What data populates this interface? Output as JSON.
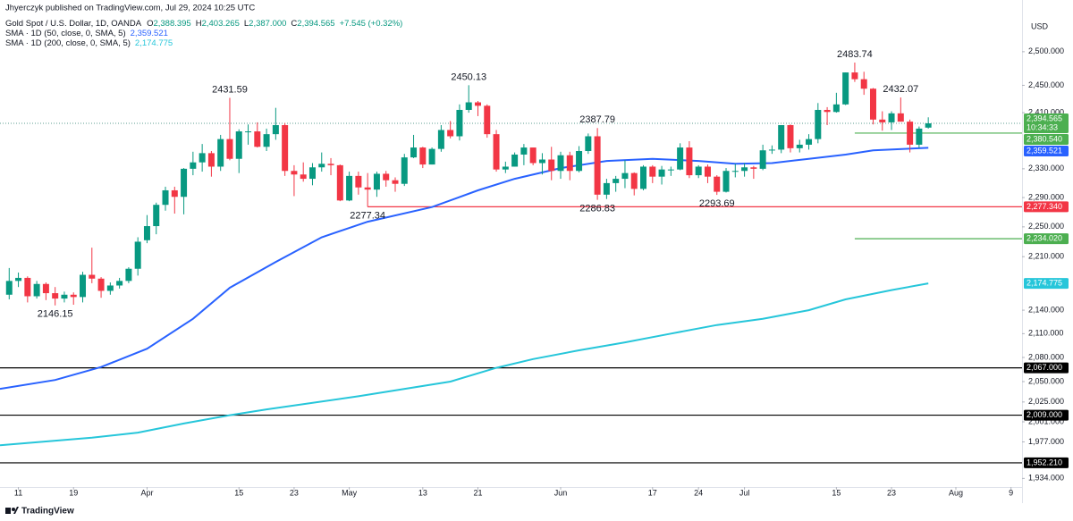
{
  "header": {
    "publisher": "Jhyerczyk published on TradingView.com, Jul 29, 2024 10:25 UTC",
    "symbol": "Gold Spot / U.S. Dollar, 1D, OANDA",
    "quote": [
      {
        "key": "O",
        "value": "2,388.395"
      },
      {
        "key": "H",
        "value": "2,403.265"
      },
      {
        "key": "L",
        "value": "2,387.000"
      },
      {
        "key": "C",
        "value": "2,394.565"
      }
    ],
    "change": "+7.545 (+0.32%)"
  },
  "footer": {
    "brand": "TradingView"
  },
  "chart_data": {
    "type": "candlestick",
    "y_label": "USD",
    "log": true,
    "up_color": "#089981",
    "down_color": "#f23645",
    "x": [
      0,
      1,
      2,
      3,
      4,
      5,
      6,
      7,
      8,
      9,
      10,
      11,
      12,
      13,
      14,
      15,
      16,
      17,
      18,
      19,
      20,
      21,
      22,
      23,
      24,
      25,
      26,
      27,
      28,
      29,
      30,
      31,
      32,
      33,
      34,
      35,
      36,
      37,
      38,
      39,
      40,
      41,
      42,
      43,
      44,
      45,
      46,
      47,
      48,
      49,
      50,
      51,
      52,
      53,
      54,
      55,
      56,
      57,
      58,
      59,
      60,
      61,
      62,
      63,
      64,
      65,
      66,
      67,
      68,
      69,
      70,
      71,
      72,
      73,
      74,
      75,
      76,
      77,
      78,
      79,
      80,
      81,
      82,
      83,
      84,
      85,
      86,
      87,
      88,
      89,
      90,
      91,
      92,
      93,
      94,
      95,
      96,
      97,
      98,
      99,
      100
    ],
    "open": [
      2160,
      2178,
      2182,
      2158,
      2174,
      2162,
      2155,
      2160,
      2157,
      2186,
      2181,
      2165,
      2172,
      2178,
      2194,
      2232,
      2251,
      2280,
      2300,
      2291,
      2330,
      2339,
      2352,
      2333,
      2372,
      2344,
      2383,
      2383,
      2361,
      2379,
      2392,
      2327,
      2322,
      2316,
      2332,
      2337,
      2335,
      2286,
      2320,
      2304,
      2301,
      2323,
      2314,
      2309,
      2346,
      2360,
      2336,
      2358,
      2385,
      2376,
      2414,
      2425,
      2420,
      2379,
      2329,
      2333,
      2350,
      2360,
      2338,
      2343,
      2327,
      2349,
      2327,
      2355,
      2376,
      2294,
      2310,
      2316,
      2324,
      2302,
      2333,
      2319,
      2329,
      2329,
      2360,
      2321,
      2333,
      2319,
      2298,
      2327,
      2327,
      2332,
      2330,
      2356,
      2357,
      2392,
      2359,
      2364,
      2372,
      2414,
      2411,
      2422,
      2469,
      2459,
      2445,
      2400,
      2396,
      2409,
      2397,
      2364,
      2388.395
    ],
    "high": [
      2195,
      2189,
      2184,
      2178,
      2176,
      2170,
      2164,
      2163,
      2190,
      2222,
      2183,
      2176,
      2182,
      2196,
      2236,
      2266,
      2283,
      2305,
      2305,
      2331,
      2354,
      2365,
      2355,
      2378,
      2431.59,
      2386,
      2393,
      2396,
      2387,
      2417,
      2395,
      2335,
      2339,
      2338,
      2353,
      2345,
      2336,
      2326,
      2326,
      2324,
      2326,
      2327,
      2318,
      2351,
      2378,
      2361,
      2360,
      2392,
      2398,
      2422,
      2450.13,
      2427,
      2422,
      2385,
      2340,
      2353,
      2365,
      2360,
      2352,
      2361,
      2354,
      2354,
      2362,
      2380,
      2387.79,
      2316,
      2320,
      2342,
      2325,
      2335,
      2335,
      2334,
      2333,
      2366,
      2369,
      2335,
      2336,
      2321,
      2331,
      2337,
      2338,
      2334,
      2364,
      2363,
      2392,
      2393,
      2371,
      2379,
      2424,
      2418,
      2439,
      2469,
      2483.74,
      2470,
      2446,
      2412,
      2412,
      2432.07,
      2400,
      2390,
      2403.265
    ],
    "low": [
      2154,
      2170,
      2150,
      2155,
      2153,
      2146.15,
      2150,
      2147,
      2150,
      2175,
      2156,
      2160,
      2168,
      2175,
      2185,
      2228,
      2240,
      2272,
      2268,
      2267,
      2321,
      2326,
      2319,
      2327,
      2342,
      2324,
      2364,
      2360,
      2355,
      2371,
      2320,
      2292,
      2312,
      2307,
      2326,
      2321,
      2285,
      2285,
      2294,
      2277.34,
      2291,
      2305,
      2298,
      2306,
      2345,
      2331,
      2336,
      2354,
      2373,
      2370,
      2410,
      2405,
      2374,
      2326,
      2324,
      2333,
      2335,
      2335,
      2322,
      2314,
      2316,
      2314,
      2325,
      2351,
      2286.83,
      2288,
      2298,
      2303,
      2293,
      2300,
      2310,
      2308,
      2320,
      2328,
      2317,
      2317,
      2310,
      2293.69,
      2297,
      2318,
      2319,
      2316,
      2328,
      2351,
      2352,
      2353,
      2353,
      2357,
      2366,
      2392,
      2410,
      2421,
      2455,
      2436,
      2393,
      2384,
      2385,
      2397,
      2353,
      2359,
      2387
    ],
    "close": [
      2178,
      2182,
      2158,
      2174,
      2162,
      2155,
      2160,
      2157,
      2186,
      2181,
      2165,
      2172,
      2178,
      2194,
      2230,
      2251,
      2280,
      2300,
      2291,
      2330,
      2339,
      2352,
      2333,
      2372,
      2344,
      2383,
      2383,
      2361,
      2379,
      2392,
      2327,
      2322,
      2316,
      2332,
      2337,
      2335,
      2286,
      2320,
      2304,
      2301,
      2323,
      2314,
      2309,
      2346,
      2360,
      2336,
      2358,
      2385,
      2376,
      2414,
      2425,
      2420,
      2379,
      2329,
      2333,
      2350,
      2360,
      2338,
      2343,
      2327,
      2349,
      2327,
      2355,
      2376,
      2294,
      2310,
      2316,
      2324,
      2302,
      2333,
      2319,
      2329,
      2329,
      2360,
      2321,
      2333,
      2319,
      2298,
      2327,
      2327,
      2332,
      2330,
      2356,
      2357,
      2392,
      2359,
      2364,
      2372,
      2414,
      2411,
      2422,
      2469,
      2459,
      2445,
      2400,
      2396,
      2409,
      2397,
      2364,
      2387,
      2394.565
    ],
    "series": [
      {
        "name": "SMA · 1D (50, close, 0, SMA, 5)",
        "color": "#2962ff",
        "last_label": "2,359.521",
        "x": [
          -1,
          5,
          10,
          15,
          20,
          24,
          29,
          34,
          39,
          46,
          51,
          55,
          60,
          65,
          70,
          75,
          79,
          83,
          87,
          91,
          94,
          100
        ],
        "values": [
          2041,
          2052,
          2068,
          2091,
          2129,
          2169,
          2203,
          2236,
          2257,
          2277,
          2300,
          2316,
          2331,
          2341,
          2344,
          2341,
          2337,
          2338,
          2344,
          2350,
          2356,
          2359.521
        ]
      },
      {
        "name": "SMA · 1D (200, close, 0, SMA, 5)",
        "color": "#26c6da",
        "last_label": "2,174.775",
        "x": [
          -1,
          9,
          14,
          19,
          24,
          28,
          38,
          48,
          53,
          57,
          62,
          67,
          72,
          77,
          82,
          87,
          91,
          96,
          100
        ],
        "values": [
          1973,
          1982,
          1988,
          1999,
          2009,
          2016,
          2032,
          2050,
          2067,
          2078,
          2089,
          2099,
          2110,
          2121,
          2129,
          2140,
          2154,
          2166,
          2174.775
        ]
      }
    ],
    "annotations": [
      {
        "value": 2146.15,
        "x": 5
      },
      {
        "value": 2431.59,
        "x": 24
      },
      {
        "value": 2277.34,
        "x": 39
      },
      {
        "value": 2450.13,
        "x": 50
      },
      {
        "value": 2387.79,
        "x": 64
      },
      {
        "value": 2286.83,
        "x": 64
      },
      {
        "value": 2293.69,
        "x": 77
      },
      {
        "value": 2483.74,
        "x": 92
      },
      {
        "value": 2432.07,
        "x": 97
      }
    ],
    "levels": [
      {
        "value": 2380.54,
        "label": "2,380.540",
        "color": "#4caf50",
        "from": 92
      },
      {
        "value": 2277.34,
        "label": "2,277.340",
        "color": "#f23645",
        "from": 39
      },
      {
        "value": 2234.02,
        "label": "2,234.020",
        "color": "#4caf50",
        "from": 92
      },
      {
        "value": 2067,
        "label": "2,067.000",
        "color": "#000000"
      },
      {
        "value": 2009,
        "label": "2,009.000",
        "color": "#000000"
      },
      {
        "value": 1952.21,
        "label": "1,952.210",
        "color": "#000000"
      }
    ],
    "last_price": {
      "value": 2394.565,
      "label": "2,394.565",
      "countdown": "10:34:33",
      "color": "#4caf50"
    },
    "xlim": [
      -1,
      110.2
    ],
    "xticks": [
      {
        "value": 1,
        "label": "11"
      },
      {
        "value": 7,
        "label": "19"
      },
      {
        "value": 15,
        "label": "Apr"
      },
      {
        "value": 25,
        "label": "15"
      },
      {
        "value": 31,
        "label": "23"
      },
      {
        "value": 37,
        "label": "May"
      },
      {
        "value": 45,
        "label": "13"
      },
      {
        "value": 51,
        "label": "21"
      },
      {
        "value": 60,
        "label": "Jun"
      },
      {
        "value": 70,
        "label": "17"
      },
      {
        "value": 75,
        "label": "24"
      },
      {
        "value": 80,
        "label": "Jul"
      },
      {
        "value": 90,
        "label": "15"
      },
      {
        "value": 96,
        "label": "23"
      },
      {
        "value": 103,
        "label": "Aug"
      },
      {
        "value": 109,
        "label": "9"
      }
    ],
    "ylim": [
      1924,
      2579
    ],
    "yticks": [
      {
        "value": 2500,
        "label": "2,500.000"
      },
      {
        "value": 2450,
        "label": "2,450.000"
      },
      {
        "value": 2410,
        "label": "2,410.000"
      },
      {
        "value": 2330,
        "label": "2,330.000"
      },
      {
        "value": 2290,
        "label": "2,290.000"
      },
      {
        "value": 2250,
        "label": "2,250.000"
      },
      {
        "value": 2210,
        "label": "2,210.000"
      },
      {
        "value": 2140,
        "label": "2,140.000"
      },
      {
        "value": 2110,
        "label": "2,110.000"
      },
      {
        "value": 2080,
        "label": "2,080.000"
      },
      {
        "value": 2050,
        "label": "2,050.000"
      },
      {
        "value": 2025,
        "label": "2,025.000"
      },
      {
        "value": 2001,
        "label": "2,001.000"
      },
      {
        "value": 1977,
        "label": "1,977.000"
      },
      {
        "value": 1934,
        "label": "1,934.000"
      }
    ]
  }
}
